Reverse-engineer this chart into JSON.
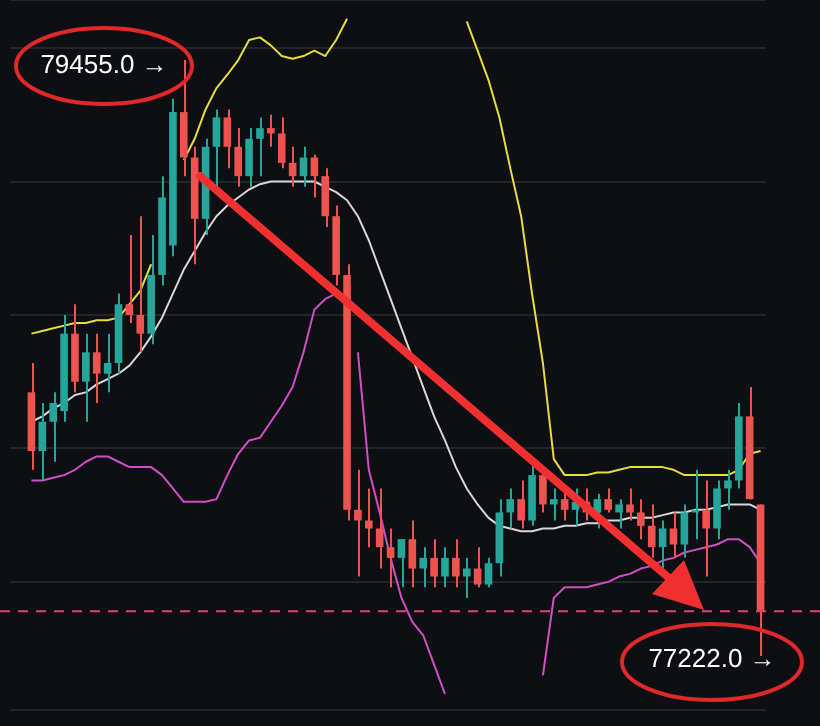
{
  "chart_data": {
    "type": "candlestick",
    "categories": [
      null,
      null,
      null,
      null,
      null,
      null,
      null,
      null,
      null,
      null,
      null,
      null,
      null,
      null,
      null,
      null,
      null,
      null,
      null,
      null,
      null,
      null,
      null,
      null,
      null,
      null,
      null,
      null,
      null,
      null,
      null,
      null,
      null,
      null,
      null,
      null,
      null,
      null,
      null,
      null,
      null,
      null,
      null,
      null,
      null,
      null,
      null,
      null,
      null,
      null,
      null,
      null,
      null,
      null,
      null,
      null,
      null,
      null,
      null,
      null,
      null,
      null,
      null,
      null,
      null,
      null,
      null,
      null
    ],
    "ohlc": [
      [
        78210,
        78320,
        77920,
        77990
      ],
      [
        77990,
        78170,
        77880,
        78100
      ],
      [
        78100,
        78210,
        77950,
        78170
      ],
      [
        78140,
        78500,
        78100,
        78430
      ],
      [
        78430,
        78540,
        78210,
        78250
      ],
      [
        78250,
        78430,
        78100,
        78360
      ],
      [
        78360,
        78430,
        78170,
        78280
      ],
      [
        78280,
        78430,
        78210,
        78320
      ],
      [
        78320,
        78580,
        78280,
        78540
      ],
      [
        78540,
        78800,
        78470,
        78500
      ],
      [
        78500,
        78870,
        78360,
        78430
      ],
      [
        78430,
        78800,
        78390,
        78650
      ],
      [
        78650,
        79020,
        78610,
        78940
      ],
      [
        78760,
        79310,
        78720,
        79260
      ],
      [
        79260,
        79455,
        79020,
        79090
      ],
      [
        79090,
        79130,
        78690,
        78860
      ],
      [
        78860,
        79160,
        78800,
        79130
      ],
      [
        79130,
        79270,
        78980,
        79240
      ],
      [
        79240,
        79270,
        79050,
        79130
      ],
      [
        79130,
        79200,
        78980,
        79020
      ],
      [
        79020,
        79200,
        78980,
        79160
      ],
      [
        79160,
        79240,
        79020,
        79200
      ],
      [
        79200,
        79250,
        79130,
        79180
      ],
      [
        79180,
        79240,
        79050,
        79070
      ],
      [
        79070,
        79130,
        78980,
        79020
      ],
      [
        79020,
        79130,
        78980,
        79090
      ],
      [
        79090,
        79100,
        78940,
        79020
      ],
      [
        79020,
        79050,
        78830,
        78870
      ],
      [
        78870,
        78910,
        78610,
        78650
      ],
      [
        78650,
        78690,
        77730,
        77770
      ],
      [
        77770,
        77920,
        77520,
        77730
      ],
      [
        77730,
        77850,
        77630,
        77700
      ],
      [
        77700,
        77850,
        77550,
        77630
      ],
      [
        77630,
        77700,
        77480,
        77590
      ],
      [
        77590,
        77660,
        77480,
        77660
      ],
      [
        77660,
        77730,
        77480,
        77550
      ],
      [
        77550,
        77630,
        77480,
        77590
      ],
      [
        77590,
        77660,
        77480,
        77520
      ],
      [
        77520,
        77630,
        77480,
        77590
      ],
      [
        77590,
        77660,
        77480,
        77520
      ],
      [
        77520,
        77590,
        77440,
        77550
      ],
      [
        77550,
        77630,
        77480,
        77490
      ],
      [
        77490,
        77590,
        77480,
        77570
      ],
      [
        77570,
        77810,
        77520,
        77760
      ],
      [
        77760,
        77850,
        77700,
        77810
      ],
      [
        77810,
        77880,
        77700,
        77730
      ],
      [
        77730,
        77950,
        77710,
        77900
      ],
      [
        77900,
        77930,
        77760,
        77790
      ],
      [
        77790,
        77850,
        77730,
        77810
      ],
      [
        77810,
        77860,
        77730,
        77770
      ],
      [
        77770,
        77850,
        77710,
        77800
      ],
      [
        77800,
        77850,
        77730,
        77760
      ],
      [
        77760,
        77830,
        77700,
        77810
      ],
      [
        77810,
        77850,
        77760,
        77770
      ],
      [
        77760,
        77810,
        77700,
        77790
      ],
      [
        77790,
        77850,
        77730,
        77760
      ],
      [
        77760,
        77810,
        77660,
        77710
      ],
      [
        77710,
        77790,
        77590,
        77630
      ],
      [
        77630,
        77730,
        77550,
        77700
      ],
      [
        77700,
        77760,
        77590,
        77640
      ],
      [
        77640,
        77790,
        77590,
        77760
      ],
      [
        77760,
        77920,
        77660,
        77770
      ],
      [
        77770,
        77880,
        77520,
        77700
      ],
      [
        77700,
        77880,
        77660,
        77850
      ],
      [
        77850,
        77920,
        77770,
        77880
      ],
      [
        77880,
        78170,
        77850,
        78120
      ],
      [
        78120,
        78230,
        77810,
        77810
      ],
      [
        77790,
        77790,
        77222,
        77390
      ]
    ],
    "colors": [
      "#ef5350",
      "#26a69a",
      "#26a69a",
      "#26a69a",
      "#ef5350",
      "#26a69a",
      "#ef5350",
      "#26a69a",
      "#26a69a",
      "#ef5350",
      "#ef5350",
      "#26a69a",
      "#26a69a",
      "#26a69a",
      "#ef5350",
      "#ef5350",
      "#26a69a",
      "#26a69a",
      "#ef5350",
      "#ef5350",
      "#26a69a",
      "#26a69a",
      "#ef5350",
      "#ef5350",
      "#ef5350",
      "#26a69a",
      "#ef5350",
      "#ef5350",
      "#ef5350",
      "#ef5350",
      "#ef5350",
      "#ef5350",
      "#ef5350",
      "#ef5350",
      "#26a69a",
      "#ef5350",
      "#26a69a",
      "#ef5350",
      "#26a69a",
      "#ef5350",
      "#26a69a",
      "#ef5350",
      "#26a69a",
      "#26a69a",
      "#26a69a",
      "#ef5350",
      "#26a69a",
      "#ef5350",
      "#26a69a",
      "#ef5350",
      "#26a69a",
      "#ef5350",
      "#26a69a",
      "#ef5350",
      "#26a69a",
      "#ef5350",
      "#ef5350",
      "#ef5350",
      "#26a69a",
      "#ef5350",
      "#26a69a",
      "#26a69a",
      "#ef5350",
      "#26a69a",
      "#26a69a",
      "#26a69a",
      "#ef5350",
      "#ef5350"
    ],
    "series": [
      {
        "type": "line",
        "color": "#e6dc3c",
        "values": [
          78430,
          78440,
          78450,
          78460,
          78470,
          78470,
          78480,
          78480,
          78490,
          78540,
          78590,
          78690,
          null,
          null,
          79080,
          79160,
          79270,
          79350,
          79400,
          79455,
          79530,
          79540,
          79510,
          79470,
          79460,
          79470,
          79490,
          79470,
          79530,
          79610,
          null,
          null,
          null,
          null,
          null,
          null,
          null,
          null,
          null,
          null,
          79600,
          79490,
          79380,
          79240,
          79050,
          78870,
          78580,
          78320,
          77960,
          77900,
          77900,
          77900,
          77910,
          77910,
          77920,
          77930,
          77930,
          77930,
          77930,
          77920,
          77900,
          77900,
          77900,
          77900,
          77900,
          77920,
          77980,
          77990
        ]
      },
      {
        "type": "line",
        "color": "#d8d8d8",
        "values": [
          78100,
          78120,
          78150,
          78170,
          78200,
          78210,
          78240,
          78260,
          78280,
          78310,
          78360,
          78420,
          78490,
          78580,
          78670,
          78740,
          78810,
          78870,
          78910,
          78940,
          78970,
          78990,
          79000,
          79000,
          79000,
          79000,
          79000,
          78980,
          78960,
          78930,
          78870,
          78780,
          78670,
          78560,
          78450,
          78340,
          78230,
          78120,
          78030,
          77930,
          77850,
          77790,
          77740,
          77710,
          77700,
          77690,
          77690,
          77700,
          77700,
          77710,
          77710,
          77720,
          77720,
          77730,
          77730,
          77740,
          77740,
          77740,
          77750,
          77760,
          77760,
          77770,
          77770,
          77780,
          77790,
          77790,
          77790,
          77770
        ]
      },
      {
        "type": "line",
        "color": "#d04fc8",
        "values": [
          77880,
          77880,
          77890,
          77900,
          77920,
          77950,
          77970,
          77970,
          77950,
          77930,
          77930,
          77930,
          77900,
          77850,
          77800,
          77800,
          77800,
          77810,
          77900,
          77980,
          78030,
          78040,
          78100,
          78160,
          78230,
          78360,
          78520,
          78560,
          78580,
          null,
          78360,
          77920,
          77760,
          77590,
          77440,
          77350,
          77300,
          77190,
          77080,
          null,
          null,
          null,
          null,
          null,
          null,
          null,
          null,
          77150,
          77440,
          77480,
          77480,
          77480,
          77490,
          77500,
          77520,
          77530,
          77550,
          77560,
          77580,
          77590,
          77610,
          77620,
          77630,
          77640,
          77660,
          77660,
          77630,
          77570
        ]
      }
    ],
    "ylim": [
      77020,
      79680
    ],
    "grid": "y",
    "tick_labels": false,
    "ref_lines": [
      {
        "axis": "y",
        "value": 77390,
        "color": "#e0407a",
        "line_style": "dashed"
      }
    ],
    "annotations": [
      "79455.0 →",
      "77222.0 →"
    ]
  }
}
